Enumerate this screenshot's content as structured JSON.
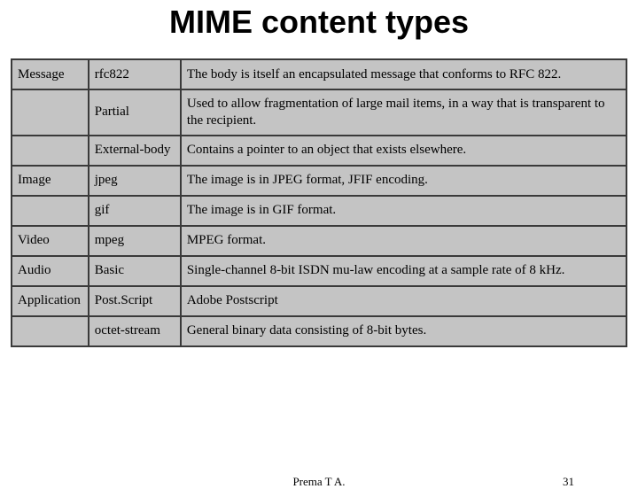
{
  "title": "MIME content types",
  "table": {
    "background_color": "#c4c4c4",
    "border_color": "#3a3a3a",
    "column_widths_pct": [
      12.5,
      15,
      72.5
    ],
    "rows": [
      [
        "Message",
        "rfc822",
        "The body is itself an encapsulated message that conforms to RFC 822."
      ],
      [
        "",
        "Partial",
        "Used to allow fragmentation of large mail items, in a way that is transparent to the recipient."
      ],
      [
        "",
        "External-body",
        "Contains a pointer to an object that exists elsewhere."
      ],
      [
        "Image",
        "jpeg",
        "The image is in JPEG format, JFIF encoding."
      ],
      [
        "",
        "gif",
        "The image is in GIF format."
      ],
      [
        "Video",
        "mpeg",
        "MPEG format."
      ],
      [
        "Audio",
        "Basic",
        "Single-channel 8-bit ISDN mu-law encoding at a sample rate of 8 kHz."
      ],
      [
        "Application",
        "Post.Script",
        "Adobe Postscript"
      ],
      [
        "",
        "octet-stream",
        "General binary data consisting of 8-bit bytes."
      ]
    ]
  },
  "footer": {
    "author": "Prema T A.",
    "page_number": "31"
  },
  "colors": {
    "page_background": "#ffffff",
    "text": "#000000"
  },
  "typography": {
    "title_font": "Comic Sans MS",
    "title_fontsize_pt": 36,
    "title_weight": "bold",
    "body_font": "Times New Roman",
    "body_fontsize_pt": 15,
    "footer_fontsize_pt": 13
  }
}
